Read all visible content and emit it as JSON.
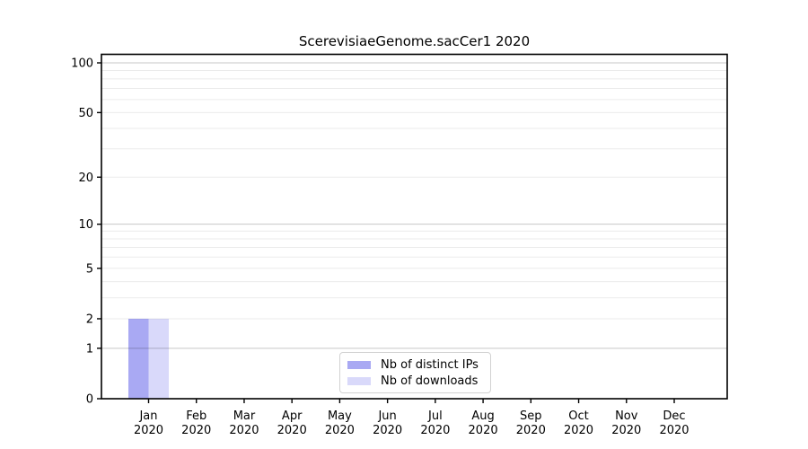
{
  "chart_data": {
    "type": "bar",
    "title": "ScerevisiaeGenome.sacCer1 2020",
    "categories": [
      "Jan",
      "Feb",
      "Mar",
      "Apr",
      "May",
      "Jun",
      "Jul",
      "Aug",
      "Sep",
      "Oct",
      "Nov",
      "Dec"
    ],
    "year": "2020",
    "series": [
      {
        "name": "Nb of distinct IPs",
        "color": "#a9a9f3",
        "values": [
          2,
          0,
          0,
          0,
          0,
          0,
          0,
          0,
          0,
          0,
          0,
          0
        ]
      },
      {
        "name": "Nb of downloads",
        "color": "#d9d9fa",
        "values": [
          2,
          0,
          0,
          0,
          0,
          0,
          0,
          0,
          0,
          0,
          0,
          0
        ]
      }
    ],
    "yscale": "log1p",
    "yticks": [
      0,
      1,
      2,
      5,
      10,
      20,
      50,
      100
    ],
    "ylim": [
      0,
      113
    ],
    "grid": {
      "major": [
        1,
        10,
        100
      ],
      "minor": [
        2,
        3,
        4,
        5,
        6,
        7,
        8,
        9,
        20,
        30,
        40,
        50,
        60,
        70,
        80,
        90
      ]
    },
    "legend": {
      "position": "lower-center"
    },
    "colors": {
      "axis": "#000000",
      "major_grid": "rgba(0,0,0,0.22)",
      "minor_grid": "rgba(0,0,0,0.08)"
    }
  }
}
